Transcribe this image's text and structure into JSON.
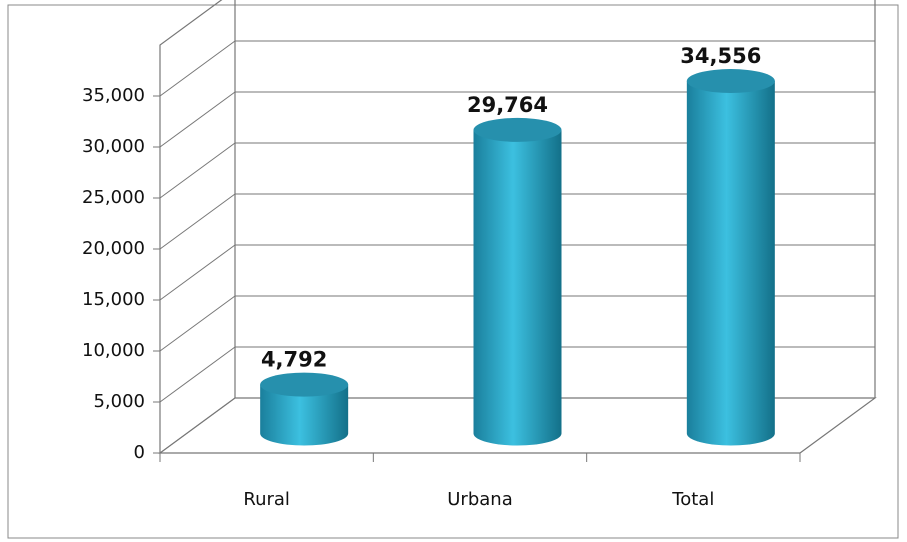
{
  "chart_data": {
    "type": "bar3d",
    "categories": [
      "Rural",
      "Urbana",
      "Total"
    ],
    "values": [
      4792,
      29764,
      34556
    ],
    "value_labels": [
      "4,792",
      "29,764",
      "34,556"
    ],
    "color": "#2aa7c9",
    "ylim": [
      0,
      40000
    ],
    "yticks": [
      0,
      {
        "value": 5000,
        "label": "5,000"
      },
      {
        "value": 10000,
        "label": "10,000"
      },
      {
        "value": 15000,
        "label": "15,000"
      },
      {
        "value": 20000,
        "label": "20,000"
      },
      {
        "value": 25000,
        "label": "25,000"
      },
      {
        "value": 30000,
        "label": "30,000"
      },
      {
        "value": 35000,
        "label": "35,000"
      }
    ],
    "grid": true
  }
}
